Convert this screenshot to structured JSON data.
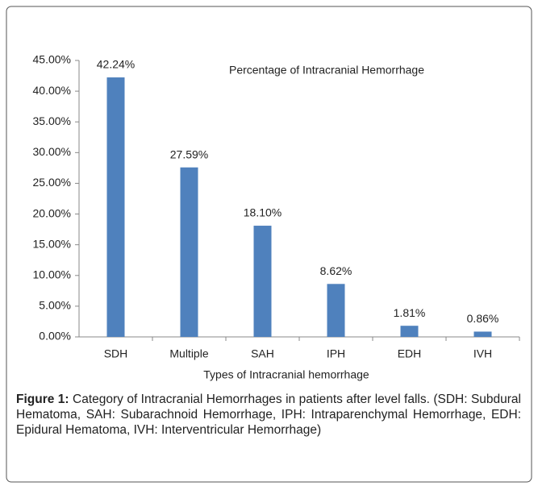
{
  "chart_data": {
    "type": "bar",
    "title": "Percentage of Intracranial Hemorrhage",
    "x_label": "Types of Intracranial hemorrhage",
    "categories": [
      "SDH",
      "Multiple",
      "SAH",
      "IPH",
      "EDH",
      "IVH"
    ],
    "values": [
      42.24,
      27.59,
      18.1,
      8.62,
      1.81,
      0.86
    ],
    "value_labels": [
      "42.24%",
      "27.59%",
      "18.10%",
      "8.62%",
      "1.81%",
      "0.86%"
    ],
    "color": "#4f81bd",
    "ylim": [
      0,
      45
    ],
    "yticks": [
      {
        "value": 0,
        "label": "0.00%"
      },
      {
        "value": 5,
        "label": "5.00%"
      },
      {
        "value": 10,
        "label": "10.00%"
      },
      {
        "value": 15,
        "label": "15.00%"
      },
      {
        "value": 20,
        "label": "20.00%"
      },
      {
        "value": 25,
        "label": "25.00%"
      },
      {
        "value": 30,
        "label": "30.00%"
      },
      {
        "value": 35,
        "label": "35.00%"
      },
      {
        "value": 40,
        "label": "40.00%"
      },
      {
        "value": 45,
        "label": "45.00%"
      }
    ],
    "grid": false
  },
  "caption": {
    "label": "Figure 1:",
    "text": "Category of Intracranial Hemorrhages in patients after level falls. (SDH: Subdural Hematoma, SAH: Subarachnoid Hemorrhage, IPH: Intraparenchymal Hemorrhage, EDH: Epidural Hematoma, IVH: Interventricular Hemorrhage)"
  }
}
